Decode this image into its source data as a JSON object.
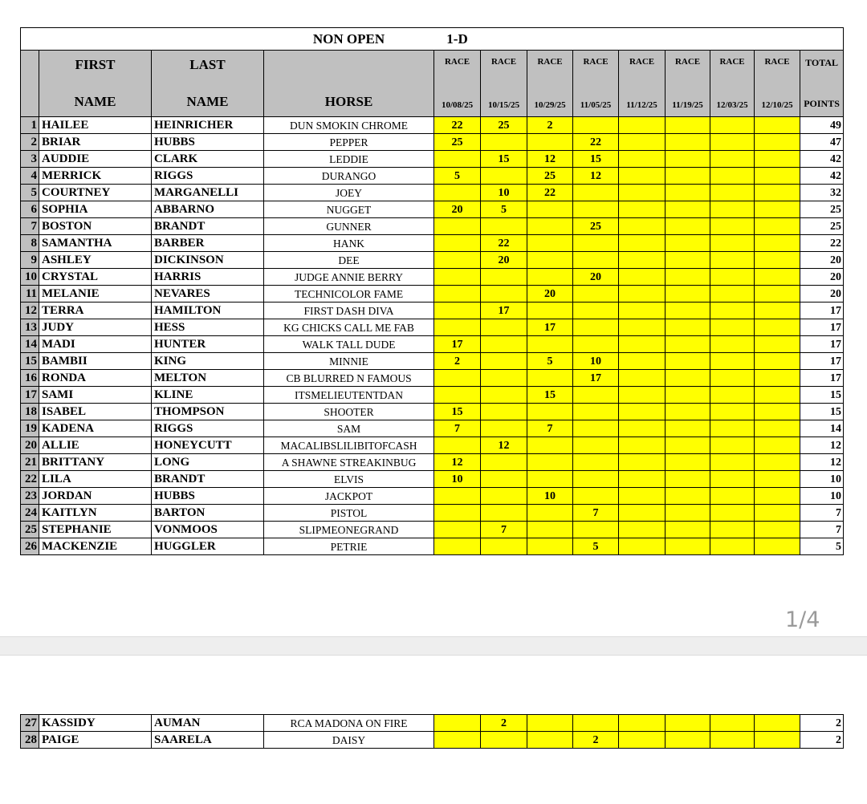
{
  "title": {
    "division_label": "NON OPEN",
    "division_code": "1-D"
  },
  "headers": {
    "first": [
      "FIRST",
      "NAME"
    ],
    "last": [
      "LAST",
      "NAME"
    ],
    "horse": "HORSE",
    "race_label": "RACE",
    "race_dates": [
      "10/08/25",
      "10/15/25",
      "10/29/25",
      "11/05/25",
      "11/12/25",
      "11/19/25",
      "12/03/25",
      "12/10/25"
    ],
    "total": [
      "TOTAL",
      "POINTS"
    ]
  },
  "colors": {
    "header_bg": "#c0c0c0",
    "race_cell_bg": "#ffff00"
  },
  "page1_rows": [
    {
      "n": "1",
      "first": "HAILEE",
      "last": "HEINRICHER",
      "horse": "DUN SMOKIN CHROME",
      "races": [
        "22",
        "25",
        "2",
        "",
        "",
        "",
        "",
        ""
      ],
      "total": "49"
    },
    {
      "n": "2",
      "first": "BRIAR",
      "last": "HUBBS",
      "horse": "PEPPER",
      "races": [
        "25",
        "",
        "",
        "22",
        "",
        "",
        "",
        ""
      ],
      "total": "47"
    },
    {
      "n": "3",
      "first": "AUDDIE",
      "last": "CLARK",
      "horse": "LEDDIE",
      "races": [
        "",
        "15",
        "12",
        "15",
        "",
        "",
        "",
        ""
      ],
      "total": "42"
    },
    {
      "n": "4",
      "first": "MERRICK",
      "last": "RIGGS",
      "horse": "DURANGO",
      "races": [
        "5",
        "",
        "25",
        "12",
        "",
        "",
        "",
        ""
      ],
      "total": "42"
    },
    {
      "n": "5",
      "first": "COURTNEY",
      "last": "MARGANELLI",
      "horse": "JOEY",
      "races": [
        "",
        "10",
        "22",
        "",
        "",
        "",
        "",
        ""
      ],
      "total": "32"
    },
    {
      "n": "6",
      "first": "SOPHIA",
      "last": "ABBARNO",
      "horse": "NUGGET",
      "races": [
        "20",
        "5",
        "",
        "",
        "",
        "",
        "",
        ""
      ],
      "total": "25"
    },
    {
      "n": "7",
      "first": "BOSTON",
      "last": "BRANDT",
      "horse": "GUNNER",
      "races": [
        "",
        "",
        "",
        "25",
        "",
        "",
        "",
        ""
      ],
      "total": "25"
    },
    {
      "n": "8",
      "first": "SAMANTHA",
      "last": "BARBER",
      "horse": "HANK",
      "races": [
        "",
        "22",
        "",
        "",
        "",
        "",
        "",
        ""
      ],
      "total": "22"
    },
    {
      "n": "9",
      "first": "ASHLEY",
      "last": "DICKINSON",
      "horse": "DEE",
      "races": [
        "",
        "20",
        "",
        "",
        "",
        "",
        "",
        ""
      ],
      "total": "20"
    },
    {
      "n": "10",
      "first": "CRYSTAL",
      "last": "HARRIS",
      "horse": "JUDGE ANNIE BERRY",
      "races": [
        "",
        "",
        "",
        "20",
        "",
        "",
        "",
        ""
      ],
      "total": "20"
    },
    {
      "n": "11",
      "first": "MELANIE",
      "last": "NEVARES",
      "horse": "TECHNICOLOR FAME",
      "races": [
        "",
        "",
        "20",
        "",
        "",
        "",
        "",
        ""
      ],
      "total": "20"
    },
    {
      "n": "12",
      "first": "TERRA",
      "last": "HAMILTON",
      "horse": "FIRST DASH DIVA",
      "races": [
        "",
        "17",
        "",
        "",
        "",
        "",
        "",
        ""
      ],
      "total": "17"
    },
    {
      "n": "13",
      "first": "JUDY",
      "last": "HESS",
      "horse": "KG CHICKS CALL ME FAB",
      "races": [
        "",
        "",
        "17",
        "",
        "",
        "",
        "",
        ""
      ],
      "total": "17"
    },
    {
      "n": "14",
      "first": "MADI",
      "last": "HUNTER",
      "horse": "WALK TALL DUDE",
      "races": [
        "17",
        "",
        "",
        "",
        "",
        "",
        "",
        ""
      ],
      "total": "17"
    },
    {
      "n": "15",
      "first": "BAMBII",
      "last": "KING",
      "horse": "MINNIE",
      "races": [
        "2",
        "",
        "5",
        "10",
        "",
        "",
        "",
        ""
      ],
      "total": "17"
    },
    {
      "n": "16",
      "first": "RONDA",
      "last": "MELTON",
      "horse": "CB BLURRED N FAMOUS",
      "races": [
        "",
        "",
        "",
        "17",
        "",
        "",
        "",
        ""
      ],
      "total": "17"
    },
    {
      "n": "17",
      "first": "SAMI",
      "last": "KLINE",
      "horse": "ITSMELIEUTENTDAN",
      "races": [
        "",
        "",
        "15",
        "",
        "",
        "",
        "",
        ""
      ],
      "total": "15"
    },
    {
      "n": "18",
      "first": "ISABEL",
      "last": "THOMPSON",
      "horse": "SHOOTER",
      "races": [
        "15",
        "",
        "",
        "",
        "",
        "",
        "",
        ""
      ],
      "total": "15"
    },
    {
      "n": "19",
      "first": "KADENA",
      "last": "RIGGS",
      "horse": "SAM",
      "races": [
        "7",
        "",
        "7",
        "",
        "",
        "",
        "",
        ""
      ],
      "total": "14"
    },
    {
      "n": "20",
      "first": "ALLIE",
      "last": "HONEYCUTT",
      "horse": "MACALIBSLILIBITOFCASH",
      "races": [
        "",
        "12",
        "",
        "",
        "",
        "",
        "",
        ""
      ],
      "total": "12"
    },
    {
      "n": "21",
      "first": "BRITTANY",
      "last": "LONG",
      "horse": "A SHAWNE STREAKINBUG",
      "races": [
        "12",
        "",
        "",
        "",
        "",
        "",
        "",
        ""
      ],
      "total": "12"
    },
    {
      "n": "22",
      "first": "LILA",
      "last": "BRANDT",
      "horse": "ELVIS",
      "races": [
        "10",
        "",
        "",
        "",
        "",
        "",
        "",
        ""
      ],
      "total": "10"
    },
    {
      "n": "23",
      "first": "JORDAN",
      "last": "HUBBS",
      "horse": "JACKPOT",
      "races": [
        "",
        "",
        "10",
        "",
        "",
        "",
        "",
        ""
      ],
      "total": "10"
    },
    {
      "n": "24",
      "first": "KAITLYN",
      "last": "BARTON",
      "horse": "PISTOL",
      "races": [
        "",
        "",
        "",
        "7",
        "",
        "",
        "",
        ""
      ],
      "total": "7"
    },
    {
      "n": "25",
      "first": "STEPHANIE",
      "last": "VONMOOS",
      "horse": "SLIPMEONEGRAND",
      "races": [
        "",
        "7",
        "",
        "",
        "",
        "",
        "",
        ""
      ],
      "total": "7"
    },
    {
      "n": "26",
      "first": "MACKENZIE",
      "last": "HUGGLER",
      "horse": "PETRIE",
      "races": [
        "",
        "",
        "",
        "5",
        "",
        "",
        "",
        ""
      ],
      "total": "5"
    }
  ],
  "page2_rows": [
    {
      "n": "27",
      "first": "KASSIDY",
      "last": "AUMAN",
      "horse": "RCA MADONA ON FIRE",
      "races": [
        "",
        "2",
        "",
        "",
        "",
        "",
        "",
        ""
      ],
      "total": "2"
    },
    {
      "n": "28",
      "first": "PAIGE",
      "last": "SAARELA",
      "horse": "DAISY",
      "races": [
        "",
        "",
        "",
        "2",
        "",
        "",
        "",
        ""
      ],
      "total": "2"
    }
  ],
  "viewer": {
    "page_indicator": "1/4"
  }
}
